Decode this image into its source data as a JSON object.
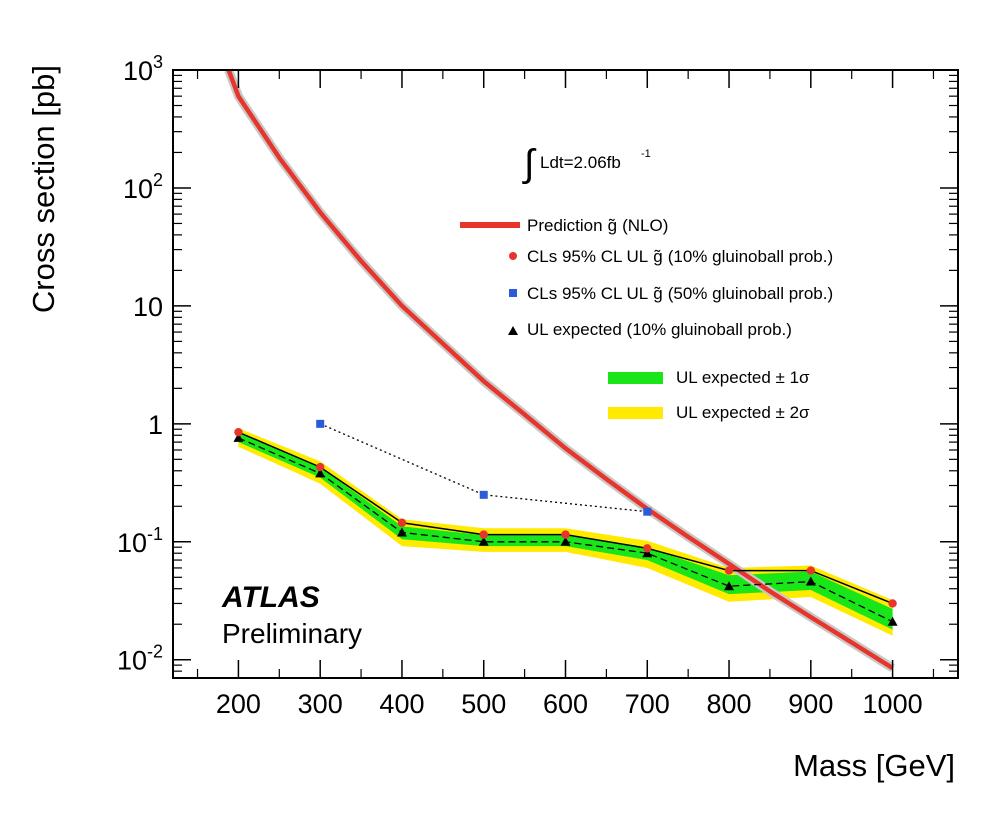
{
  "chart_data": {
    "type": "line",
    "xlabel": "Mass [GeV]",
    "ylabel": "Cross section [pb]",
    "xlim": [
      120,
      1080
    ],
    "ylim": [
      0.007,
      1000
    ],
    "y_scale": "log",
    "x_ticks": [
      {
        "value": 200,
        "label": "200"
      },
      {
        "value": 300,
        "label": "300"
      },
      {
        "value": 400,
        "label": "400"
      },
      {
        "value": 500,
        "label": "500"
      },
      {
        "value": 600,
        "label": "600"
      },
      {
        "value": 700,
        "label": "700"
      },
      {
        "value": 800,
        "label": "800"
      },
      {
        "value": 900,
        "label": "900"
      },
      {
        "value": 1000,
        "label": "1000"
      }
    ],
    "y_ticks": [
      {
        "value": 0.01,
        "base": "10",
        "exp": "-2"
      },
      {
        "value": 0.1,
        "base": "10",
        "exp": "-1"
      },
      {
        "value": 1,
        "base": "1",
        "exp": ""
      },
      {
        "value": 10,
        "base": "10",
        "exp": ""
      },
      {
        "value": 100,
        "base": "10",
        "exp": "2"
      },
      {
        "value": 1000,
        "base": "10",
        "exp": "3"
      }
    ],
    "prediction": {
      "color": "#e8352b",
      "x": [
        188,
        200,
        250,
        300,
        350,
        400,
        450,
        500,
        550,
        600,
        650,
        700,
        750,
        800,
        850,
        900,
        950,
        1000
      ],
      "y": [
        1000,
        600,
        180,
        62,
        24,
        10,
        4.8,
        2.3,
        1.2,
        0.62,
        0.34,
        0.19,
        0.11,
        0.065,
        0.038,
        0.023,
        0.014,
        0.0085
      ]
    },
    "observed_10": {
      "color": "#e8352b",
      "x": [
        200,
        300,
        400,
        500,
        600,
        700,
        800,
        900,
        1000
      ],
      "y": [
        0.85,
        0.43,
        0.145,
        0.115,
        0.115,
        0.088,
        0.057,
        0.057,
        0.03
      ]
    },
    "observed_50": {
      "color": "#2b5bd8",
      "x": [
        300,
        500,
        700
      ],
      "y": [
        1.0,
        0.25,
        0.18
      ]
    },
    "expected": {
      "color": "#000000",
      "x": [
        200,
        300,
        400,
        500,
        600,
        700,
        800,
        900,
        1000
      ],
      "y": [
        0.76,
        0.38,
        0.12,
        0.1,
        0.1,
        0.08,
        0.042,
        0.046,
        0.021
      ]
    },
    "band_1sigma": {
      "color": "#19e619",
      "x": [
        200,
        300,
        400,
        500,
        600,
        700,
        800,
        900,
        1000
      ],
      "low": [
        0.7,
        0.35,
        0.105,
        0.092,
        0.092,
        0.07,
        0.036,
        0.039,
        0.018
      ],
      "high": [
        0.84,
        0.43,
        0.135,
        0.114,
        0.114,
        0.09,
        0.052,
        0.056,
        0.027
      ]
    },
    "band_2sigma": {
      "color": "#ffea00",
      "x": [
        200,
        300,
        400,
        500,
        600,
        700,
        800,
        900,
        1000
      ],
      "low": [
        0.64,
        0.31,
        0.092,
        0.082,
        0.082,
        0.06,
        0.031,
        0.034,
        0.016
      ],
      "high": [
        0.92,
        0.48,
        0.155,
        0.13,
        0.13,
        0.102,
        0.06,
        0.063,
        0.032
      ]
    },
    "legend": {
      "position": "top-right",
      "prediction_label": "Prediction",
      "prediction_symbol": "g̃",
      "prediction_suffix": "(NLO)",
      "observed_10_label": "CLs 95% CL UL",
      "observed_10_symbol": "g̃",
      "observed_10_suffix": "(10% gluinoball prob.)",
      "observed_50_label": "CLs 95% CL UL",
      "observed_50_symbol": "g̃",
      "observed_50_suffix": "(50% gluinoball prob.)",
      "expected_label": "UL expected (10% gluinoball prob.)",
      "band_1sigma_label": "UL expected ± 1σ",
      "band_2sigma_label": "UL expected ± 2σ"
    },
    "luminosity": {
      "integral": "∫",
      "text": "Ldt=2.06fb",
      "exp": "-1"
    },
    "experiment": "ATLAS",
    "status": "Preliminary"
  }
}
